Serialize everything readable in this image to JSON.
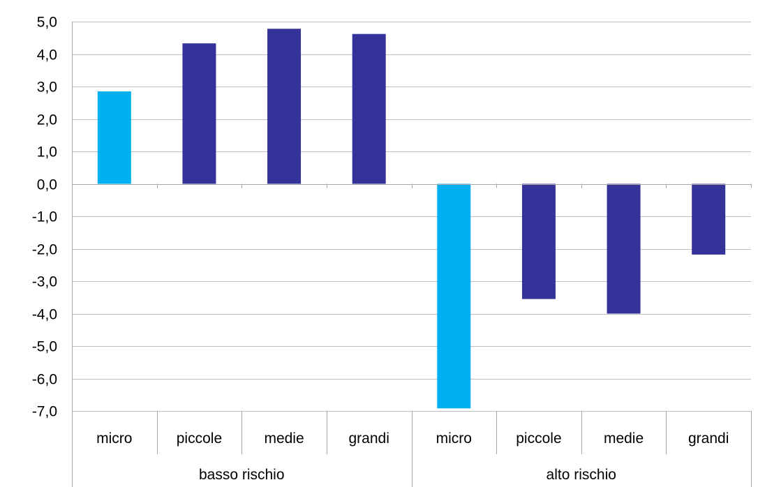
{
  "chart_data": {
    "type": "bar",
    "ylim": [
      -7,
      5
    ],
    "y_step": 1,
    "y_tick_labels": [
      "5,0",
      "4,0",
      "3,0",
      "2,0",
      "1,0",
      "0,0",
      "-1,0",
      "-2,0",
      "-3,0",
      "-4,0",
      "-5,0",
      "-6,0",
      "-7,0"
    ],
    "grid": true,
    "legend": "none",
    "groups": [
      {
        "label": "basso rischio",
        "categories": [
          "micro",
          "piccole",
          "medie",
          "grandi"
        ],
        "values": [
          2.85,
          4.33,
          4.78,
          4.62
        ]
      },
      {
        "label": "alto rischio",
        "categories": [
          "micro",
          "piccole",
          "medie",
          "grandi"
        ],
        "values": [
          -6.92,
          -3.55,
          -4.0,
          -2.18
        ]
      }
    ],
    "colors": {
      "micro": "#00B0F0",
      "other": "#333399",
      "grid": "#BFBFBF",
      "axis": "#A6A6A6"
    }
  }
}
